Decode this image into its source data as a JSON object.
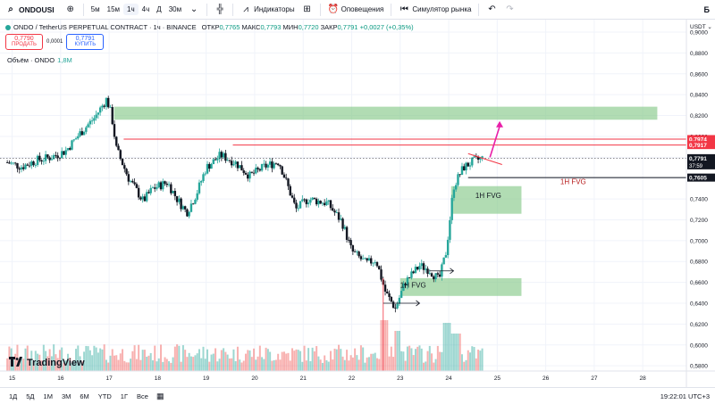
{
  "toolbar": {
    "symbol": "ONDOUSI",
    "intervals": [
      "5м",
      "15м",
      "1ч",
      "4ч",
      "Д",
      "30м"
    ],
    "active_interval": "1ч",
    "indicators_label": "Индикаторы",
    "alerts_label": "Оповещения",
    "replay_label": "Симулятор рынка",
    "right_label": "Б"
  },
  "legend": {
    "title": "ONDO / TetherUS PERPETUAL CONTRACT · 1ч · BINANCE",
    "open_label": "ОТКР",
    "open": "0,7765",
    "high_label": "МАКС",
    "high": "0,7793",
    "low_label": "МИН",
    "low": "0,7720",
    "close_label": "ЗАКР",
    "close": "0,7791",
    "change": "+0,0027 (+0,35%)"
  },
  "trade": {
    "sell_price": "0,7790",
    "sell_label": "ПРОДАТЬ",
    "spread": "0,0001",
    "buy_price": "0,7791",
    "buy_label": "КУПИТЬ"
  },
  "volume": {
    "label": "Объём · ONDO",
    "value": "1,8M"
  },
  "currency": "USDT",
  "logo_text": "TradingView",
  "bottom": {
    "ranges": [
      "1Д",
      "5Д",
      "1М",
      "3М",
      "6М",
      "YTD",
      "1Г",
      "Все"
    ],
    "clock": "19:22:01 UTC+3"
  },
  "colors": {
    "up": "#26a69a",
    "down": "#131722",
    "zone": "#81c784",
    "red_line": "#f23645",
    "magenta": "#e91ea8",
    "accent": "#2962ff"
  },
  "chart_data": {
    "type": "candlestick",
    "y_ticks": [
      "0,9000",
      "0,8800",
      "0,8600",
      "0,8400",
      "0,8200",
      "0,8000",
      "0,7800",
      "0,7600",
      "0,7400",
      "0,7200",
      "0,7000",
      "0,6800",
      "0,6600",
      "0,6400",
      "0,6200",
      "0,6000",
      "0,5800"
    ],
    "y_tick_values": [
      0.9,
      0.88,
      0.86,
      0.84,
      0.82,
      0.8,
      0.78,
      0.76,
      0.74,
      0.72,
      0.7,
      0.68,
      0.66,
      0.64,
      0.62,
      0.6,
      0.58
    ],
    "ylim": [
      0.575,
      0.912
    ],
    "x_ticks": [
      "15",
      "16",
      "17",
      "18",
      "19",
      "20",
      "21",
      "22",
      "23",
      "24",
      "25",
      "26",
      "27",
      "28"
    ],
    "x_tick_days": [
      15,
      16,
      17,
      18,
      19,
      20,
      21,
      22,
      23,
      24,
      25,
      26,
      27,
      28
    ],
    "xlim_days": [
      14.75,
      28.9
    ],
    "price_labels": [
      {
        "text": "0,7974",
        "value": 0.7974,
        "style": "red"
      },
      {
        "text": "0,7917",
        "value": 0.7917,
        "style": "red"
      },
      {
        "text": "0,7791",
        "value": 0.7791,
        "style": "dark",
        "sub": "37:59"
      },
      {
        "text": "0,7605",
        "value": 0.7605,
        "style": "dark"
      }
    ],
    "anchors": [
      {
        "d": 14.9,
        "p": 0.775
      },
      {
        "d": 15.2,
        "p": 0.771
      },
      {
        "d": 15.5,
        "p": 0.777
      },
      {
        "d": 15.8,
        "p": 0.78
      },
      {
        "d": 16.1,
        "p": 0.786
      },
      {
        "d": 16.4,
        "p": 0.803
      },
      {
        "d": 16.7,
        "p": 0.818
      },
      {
        "d": 16.95,
        "p": 0.836
      },
      {
        "d": 17.05,
        "p": 0.82
      },
      {
        "d": 17.15,
        "p": 0.788
      },
      {
        "d": 17.4,
        "p": 0.76
      },
      {
        "d": 17.7,
        "p": 0.738
      },
      {
        "d": 17.9,
        "p": 0.75
      },
      {
        "d": 18.2,
        "p": 0.756
      },
      {
        "d": 18.4,
        "p": 0.74
      },
      {
        "d": 18.6,
        "p": 0.727
      },
      {
        "d": 18.8,
        "p": 0.745
      },
      {
        "d": 19.0,
        "p": 0.77
      },
      {
        "d": 19.3,
        "p": 0.782
      },
      {
        "d": 19.6,
        "p": 0.775
      },
      {
        "d": 19.9,
        "p": 0.762
      },
      {
        "d": 20.2,
        "p": 0.771
      },
      {
        "d": 20.5,
        "p": 0.776
      },
      {
        "d": 20.7,
        "p": 0.75
      },
      {
        "d": 20.85,
        "p": 0.73
      },
      {
        "d": 21.1,
        "p": 0.74
      },
      {
        "d": 21.5,
        "p": 0.736
      },
      {
        "d": 21.8,
        "p": 0.718
      },
      {
        "d": 22.0,
        "p": 0.69
      },
      {
        "d": 22.3,
        "p": 0.678
      },
      {
        "d": 22.5,
        "p": 0.682
      },
      {
        "d": 22.7,
        "p": 0.65
      },
      {
        "d": 22.9,
        "p": 0.635
      },
      {
        "d": 23.1,
        "p": 0.66
      },
      {
        "d": 23.4,
        "p": 0.676
      },
      {
        "d": 23.6,
        "p": 0.672
      },
      {
        "d": 23.8,
        "p": 0.662
      },
      {
        "d": 23.95,
        "p": 0.69
      },
      {
        "d": 24.1,
        "p": 0.752
      },
      {
        "d": 24.3,
        "p": 0.77
      },
      {
        "d": 24.5,
        "p": 0.776
      },
      {
        "d": 24.7,
        "p": 0.779
      }
    ],
    "zones": [
      {
        "d1": 17.1,
        "d2": 28.3,
        "top": 0.8285,
        "bottom": 0.816
      },
      {
        "d1": 24.05,
        "d2": 25.5,
        "top": 0.7523,
        "bottom": 0.7258
      },
      {
        "d1": 23.0,
        "d2": 25.5,
        "top": 0.664,
        "bottom": 0.647
      }
    ],
    "zone_labels": [
      {
        "text": "1H FVG",
        "d": 24.55,
        "p": 0.741,
        "color": "#131722"
      },
      {
        "text": "1H FVG",
        "d": 23.0,
        "p": 0.655,
        "color": "#131722"
      },
      {
        "text": "1H FVG",
        "d": 26.3,
        "p": 0.754,
        "color": "#b71c1c"
      }
    ],
    "hlines": [
      {
        "d1": 17.3,
        "d2": 28.95,
        "p": 0.7974,
        "color": "#f23645"
      },
      {
        "d1": 19.55,
        "d2": 28.95,
        "p": 0.7917,
        "color": "#f23645"
      },
      {
        "d1": 24.4,
        "d2": 28.95,
        "p": 0.7605,
        "color": "#131722"
      }
    ],
    "dotted_line": {
      "p": 0.7791
    },
    "trend_line": {
      "d1": 24.4,
      "p1": 0.7835,
      "d2": 25.1,
      "p2": 0.773
    },
    "arrows": [
      {
        "d1": 22.65,
        "p1": 0.64,
        "d2": 23.4,
        "p2": 0.64
      },
      {
        "d1": 23.6,
        "p1": 0.671,
        "d2": 24.1,
        "p2": 0.671
      }
    ],
    "vline_marker": {
      "d": 22.65,
      "p_top": 0.664,
      "p_bottom": 0.575
    },
    "magenta_arrow": {
      "d1": 24.85,
      "p1": 0.78,
      "d2": 25.05,
      "p2": 0.813
    },
    "volume_max": 1.0
  }
}
